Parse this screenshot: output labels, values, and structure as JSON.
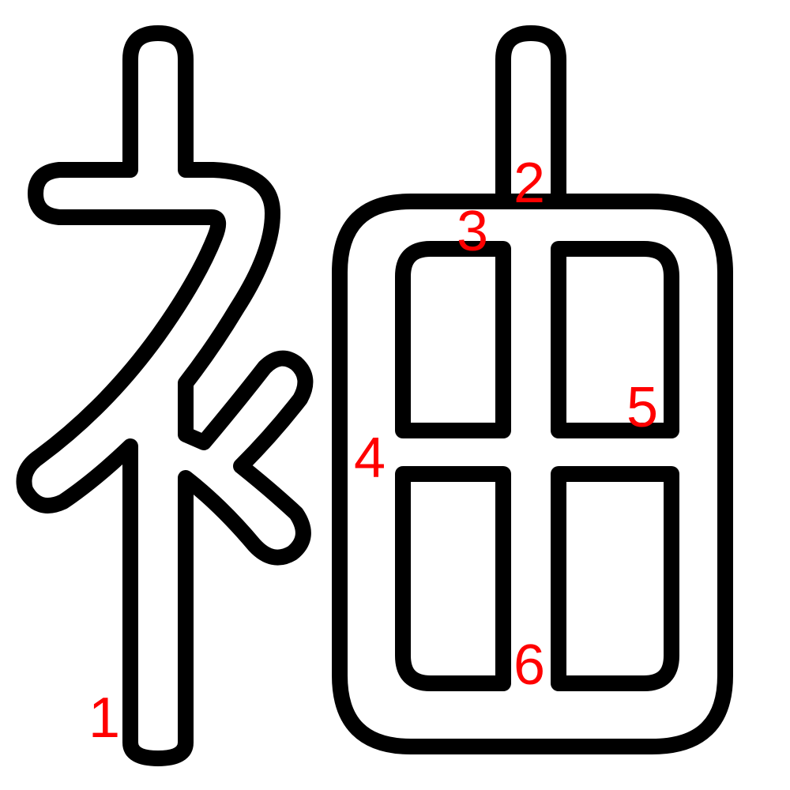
{
  "glyph": {
    "stroke_numbers": [
      "1",
      "2",
      "3",
      "4",
      "5",
      "6"
    ]
  },
  "colors": {
    "outline": "#000000",
    "fill": "#ffffff",
    "label": "#ff0000",
    "background": "#ffffff"
  }
}
